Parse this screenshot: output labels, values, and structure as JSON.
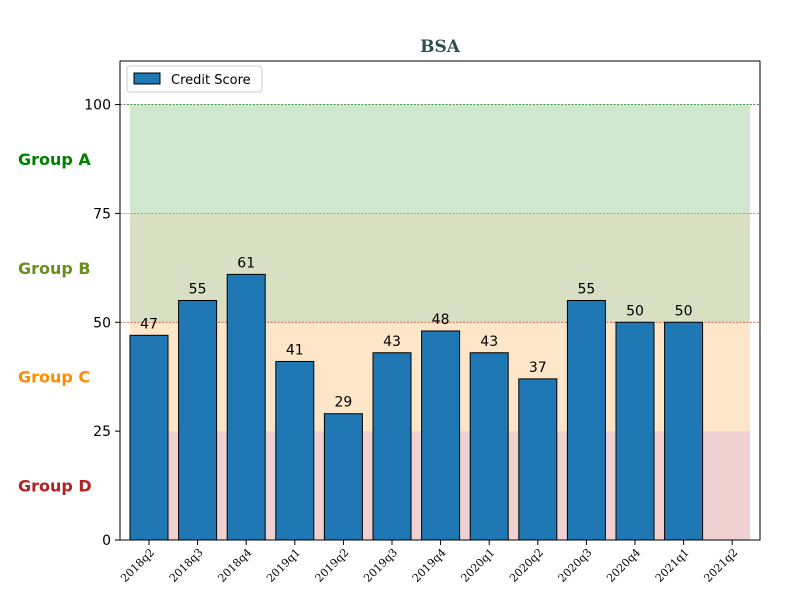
{
  "colors": {
    "bar": "#1f77b4",
    "title": "#2f4f4f",
    "group_a": "#008000",
    "group_b": "#6b8e23",
    "group_c": "#ff8c00",
    "group_d": "#b22222"
  },
  "chart_data": {
    "type": "bar",
    "title": "BSA",
    "xlabel": "",
    "ylabel": "",
    "categories": [
      "2018q2",
      "2018q3",
      "2018q4",
      "2019q1",
      "2019q2",
      "2019q3",
      "2019q4",
      "2020q1",
      "2020q2",
      "2020q3",
      "2020q4",
      "2021q1",
      "2021q2"
    ],
    "series": [
      {
        "name": "Credit Score",
        "values": [
          47,
          55,
          61,
          41,
          29,
          43,
          48,
          43,
          37,
          55,
          50,
          50,
          null
        ]
      }
    ],
    "ylim": [
      0,
      110
    ],
    "yticks": [
      0,
      25,
      50,
      75,
      100
    ],
    "legend": "top-left",
    "bands": [
      {
        "label": "Group A",
        "from": 75,
        "to": 100,
        "fill": "#cfe6cf",
        "label_color": "#008000",
        "line_color": "#2e8b2e"
      },
      {
        "label": "Group B",
        "from": 50,
        "to": 75,
        "fill": "#d8dfc2",
        "label_color": "#6b8e23",
        "line_color": "#c77a14"
      },
      {
        "label": "Group C",
        "from": 25,
        "to": 50,
        "fill": "#fee6c8",
        "label_color": "#ff8c00",
        "line_color": "#c0392b"
      },
      {
        "label": "Group D",
        "from": 0,
        "to": 25,
        "fill": "#efd1d1",
        "label_color": "#b22222",
        "line_color": "none"
      }
    ]
  }
}
